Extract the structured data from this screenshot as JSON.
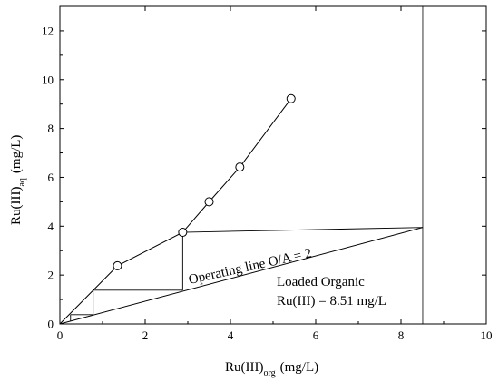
{
  "chart_data": {
    "type": "scatter",
    "title": "",
    "xlabel": {
      "main": "Ru(III)",
      "sub": "org",
      "unit": "(mg/L)"
    },
    "ylabel": {
      "main": "Ru(III)",
      "sub": "aq",
      "unit": "(mg/L)"
    },
    "xlim": [
      0,
      10
    ],
    "ylim": [
      0,
      13
    ],
    "xticks": [
      0,
      2,
      4,
      6,
      8,
      10
    ],
    "yticks": [
      0,
      2,
      4,
      6,
      8,
      10,
      12
    ],
    "grid": false,
    "equilibrium_points": {
      "x": [
        1.35,
        2.88,
        3.5,
        4.22,
        5.42
      ],
      "y": [
        2.38,
        3.75,
        5.0,
        6.42,
        9.22
      ]
    },
    "equilibrium_curve": {
      "x": [
        0.0,
        1.35,
        2.88,
        3.5,
        4.22,
        5.42
      ],
      "y": [
        0.0,
        2.38,
        3.75,
        5.0,
        6.42,
        9.22
      ]
    },
    "operating_line": {
      "x": [
        0.0,
        8.51
      ],
      "y": [
        0.0,
        3.95
      ],
      "label": "Operating line O/A = 2"
    },
    "steps": [
      {
        "x": [
          8.51,
          2.88
        ],
        "y": [
          3.95,
          3.75
        ]
      },
      {
        "x": [
          2.88,
          2.88
        ],
        "y": [
          3.75,
          1.38
        ]
      },
      {
        "x": [
          2.88,
          0.78
        ],
        "y": [
          1.38,
          1.38
        ]
      },
      {
        "x": [
          0.78,
          0.78
        ],
        "y": [
          1.38,
          0.38
        ]
      },
      {
        "x": [
          0.78,
          0.25
        ],
        "y": [
          0.38,
          0.38
        ]
      },
      {
        "x": [
          0.25,
          0.25
        ],
        "y": [
          0.38,
          0.12
        ]
      }
    ],
    "vertical_line_x": 8.51,
    "annotation": {
      "line1": "Loaded Organic",
      "line2": "Ru(III) = 8.51 mg/L"
    }
  }
}
